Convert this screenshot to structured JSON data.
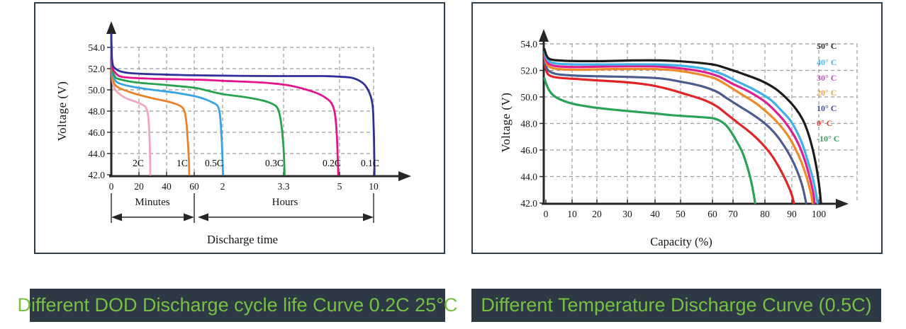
{
  "chart_data": [
    {
      "type": "line",
      "title": "Different DOD Discharge cycle life Curve 0.2C 25°C",
      "xlabel": "Discharge time",
      "ylabel": "Voltage (V)",
      "x_axis_units": {
        "first": "Minutes",
        "second": "Hours"
      },
      "x_ticks": [
        "0",
        "20",
        "40",
        "60",
        "2",
        "3.3",
        "5",
        "10"
      ],
      "x_tick_values_hours": [
        0,
        0.333,
        0.667,
        1,
        2,
        3.3,
        5,
        10
      ],
      "y_ticks": [
        "54.0",
        "52.0",
        "50.0",
        "48.0",
        "46.0",
        "44.0",
        "42.0"
      ],
      "y_tick_values": [
        54,
        52,
        50,
        48,
        46,
        44,
        42
      ],
      "ylim": [
        42,
        54
      ],
      "grid": "dashed",
      "series": [
        {
          "name": "2C",
          "color": "#f2a7bb",
          "points": [
            [
              0,
              53.8
            ],
            [
              0.008,
              51.5
            ],
            [
              0.02,
              50.6
            ],
            [
              0.05,
              50.0
            ],
            [
              0.1,
              49.6
            ],
            [
              0.18,
              49.2
            ],
            [
              0.27,
              48.95
            ],
            [
              0.35,
              48.7
            ],
            [
              0.41,
              48.4
            ],
            [
              0.44,
              47.8
            ],
            [
              0.455,
              46.5
            ],
            [
              0.465,
              44.5
            ],
            [
              0.47,
              42
            ]
          ]
        },
        {
          "name": "1C",
          "color": "#e8832c",
          "points": [
            [
              0,
              54.2
            ],
            [
              0.01,
              51.6
            ],
            [
              0.03,
              50.7
            ],
            [
              0.07,
              50.3
            ],
            [
              0.15,
              50.0
            ],
            [
              0.3,
              49.6
            ],
            [
              0.5,
              49.2
            ],
            [
              0.68,
              48.9
            ],
            [
              0.8,
              48.6
            ],
            [
              0.87,
              48.2
            ],
            [
              0.9,
              47.3
            ],
            [
              0.92,
              45.5
            ],
            [
              0.935,
              43.5
            ],
            [
              0.94,
              42
            ]
          ]
        },
        {
          "name": "0.5C",
          "color": "#3aa3e6",
          "points": [
            [
              0,
              54.5
            ],
            [
              0.01,
              52.0
            ],
            [
              0.04,
              51.0
            ],
            [
              0.1,
              50.6
            ],
            [
              0.25,
              50.3
            ],
            [
              0.5,
              50.0
            ],
            [
              0.8,
              49.7
            ],
            [
              1.1,
              49.35
            ],
            [
              1.4,
              49.1
            ],
            [
              1.65,
              48.8
            ],
            [
              1.82,
              48.5
            ],
            [
              1.9,
              47.8
            ],
            [
              1.95,
              46.2
            ],
            [
              1.99,
              44.0
            ],
            [
              2.01,
              42
            ]
          ]
        },
        {
          "name": "0.3C",
          "color": "#27a24f",
          "points": [
            [
              0,
              54.7
            ],
            [
              0.01,
              52.2
            ],
            [
              0.04,
              51.3
            ],
            [
              0.1,
              51.0
            ],
            [
              0.3,
              50.7
            ],
            [
              0.6,
              50.5
            ],
            [
              1.0,
              50.2
            ],
            [
              1.5,
              49.9
            ],
            [
              2.0,
              49.6
            ],
            [
              2.5,
              49.3
            ],
            [
              2.85,
              49.0
            ],
            [
              3.05,
              48.7
            ],
            [
              3.18,
              48.2
            ],
            [
              3.25,
              46.8
            ],
            [
              3.3,
              44.5
            ],
            [
              3.33,
              42
            ]
          ]
        },
        {
          "name": "0.2C",
          "color": "#e6148c",
          "points": [
            [
              0,
              55.0
            ],
            [
              0.01,
              52.4
            ],
            [
              0.05,
              51.6
            ],
            [
              0.15,
              51.2
            ],
            [
              0.5,
              51.05
            ],
            [
              1.2,
              50.95
            ],
            [
              2.0,
              50.85
            ],
            [
              2.8,
              50.7
            ],
            [
              3.4,
              50.45
            ],
            [
              3.9,
              50.1
            ],
            [
              4.3,
              49.7
            ],
            [
              4.6,
              49.2
            ],
            [
              4.78,
              48.6
            ],
            [
              4.87,
              47.5
            ],
            [
              4.92,
              45.5
            ],
            [
              4.95,
              43.0
            ],
            [
              4.96,
              42
            ]
          ]
        },
        {
          "name": "0.1C",
          "color": "#30309a",
          "points": [
            [
              0,
              55.3
            ],
            [
              0.01,
              52.8
            ],
            [
              0.05,
              52.0
            ],
            [
              0.2,
              51.6
            ],
            [
              0.6,
              51.45
            ],
            [
              1.5,
              51.35
            ],
            [
              3.0,
              51.3
            ],
            [
              4.5,
              51.3
            ],
            [
              6.0,
              51.2
            ],
            [
              7.0,
              51.1
            ],
            [
              7.8,
              50.9
            ],
            [
              8.5,
              50.6
            ],
            [
              9.0,
              50.2
            ],
            [
              9.4,
              49.7
            ],
            [
              9.7,
              49.1
            ],
            [
              9.88,
              48.4
            ],
            [
              9.97,
              47.3
            ],
            [
              10.05,
              45.5
            ],
            [
              10.1,
              43.5
            ],
            [
              10.12,
              42
            ]
          ]
        }
      ]
    },
    {
      "type": "line",
      "title": "Different Temperature Discharge Curve (0.5C)",
      "xlabel": "Capacity (%)",
      "ylabel": "Voltage (V)",
      "x_ticks": [
        "0",
        "10",
        "20",
        "30",
        "40",
        "50",
        "60",
        "70",
        "80",
        "90",
        "100"
      ],
      "x_tick_values": [
        0,
        10,
        20,
        30,
        40,
        50,
        60,
        70,
        80,
        90,
        100
      ],
      "y_ticks": [
        "54.0",
        "52.0",
        "50.0",
        "48.0",
        "46.0",
        "44.0",
        "42.0"
      ],
      "y_tick_values": [
        54,
        52,
        50,
        48,
        46,
        44,
        42
      ],
      "xlim": [
        0,
        100
      ],
      "ylim": [
        42,
        54
      ],
      "grid": "dashed",
      "legend_position": "right-top",
      "series": [
        {
          "label": "50° C",
          "color": "#1c1c1c",
          "legend_color": "#2b2b33",
          "points": [
            [
              0,
              53.6
            ],
            [
              0.8,
              53.1
            ],
            [
              2,
              52.85
            ],
            [
              5,
              52.75
            ],
            [
              12,
              52.7
            ],
            [
              22,
              52.7
            ],
            [
              32,
              52.75
            ],
            [
              42,
              52.75
            ],
            [
              52,
              52.65
            ],
            [
              60,
              52.45
            ],
            [
              67,
              52.15
            ],
            [
              73,
              51.75
            ],
            [
              79,
              51.2
            ],
            [
              84,
              50.6
            ],
            [
              88,
              49.9
            ],
            [
              91.5,
              49.1
            ],
            [
              94,
              48.3
            ],
            [
              96,
              47.3
            ],
            [
              97.8,
              46.0
            ],
            [
              99.2,
              44.6
            ],
            [
              100.2,
              43.2
            ],
            [
              100.8,
              42
            ]
          ]
        },
        {
          "label": "40° C",
          "color": "#3fb1e8",
          "legend_color": "#4db8e8",
          "points": [
            [
              0,
              53.4
            ],
            [
              0.8,
              52.9
            ],
            [
              2,
              52.65
            ],
            [
              5,
              52.5
            ],
            [
              12,
              52.45
            ],
            [
              25,
              52.45
            ],
            [
              40,
              52.45
            ],
            [
              50,
              52.35
            ],
            [
              58,
              52.1
            ],
            [
              65,
              51.7
            ],
            [
              71,
              51.2
            ],
            [
              77,
              50.5
            ],
            [
              82,
              49.8
            ],
            [
              86,
              49.0
            ],
            [
              89.5,
              48.2
            ],
            [
              92.3,
              47.2
            ],
            [
              94.5,
              46.1
            ],
            [
              96.3,
              44.9
            ],
            [
              97.6,
              44.0
            ],
            [
              98.7,
              43.0
            ],
            [
              99.5,
              42
            ]
          ]
        },
        {
          "label": "30° C",
          "color": "#de1f8e",
          "legend_color": "#b558b5",
          "points": [
            [
              0,
              53.2
            ],
            [
              0.8,
              52.7
            ],
            [
              2,
              52.45
            ],
            [
              5,
              52.3
            ],
            [
              12,
              52.25
            ],
            [
              25,
              52.3
            ],
            [
              40,
              52.3
            ],
            [
              50,
              52.15
            ],
            [
              57,
              51.9
            ],
            [
              63,
              51.55
            ],
            [
              69,
              51.05
            ],
            [
              75,
              50.4
            ],
            [
              80,
              49.65
            ],
            [
              84,
              48.9
            ],
            [
              87.5,
              48.1
            ],
            [
              90.5,
              47.2
            ],
            [
              93,
              46.2
            ],
            [
              95,
              45.1
            ],
            [
              96.8,
              43.8
            ],
            [
              98,
              42.7
            ],
            [
              98.4,
              42
            ]
          ]
        },
        {
          "label": "20° C",
          "color": "#ef8a28",
          "legend_color": "#f2a050",
          "points": [
            [
              0,
              53.1
            ],
            [
              0.8,
              52.5
            ],
            [
              2,
              52.25
            ],
            [
              5,
              52.1
            ],
            [
              12,
              52.05
            ],
            [
              25,
              52.1
            ],
            [
              40,
              52.1
            ],
            [
              48,
              52.0
            ],
            [
              55,
              51.75
            ],
            [
              61,
              51.4
            ],
            [
              67,
              50.9
            ],
            [
              72,
              50.3
            ],
            [
              77,
              49.55
            ],
            [
              81,
              48.8
            ],
            [
              85,
              48.0
            ],
            [
              88.5,
              47.1
            ],
            [
              91.3,
              46.1
            ],
            [
              93.7,
              45.0
            ],
            [
              95.7,
              43.8
            ],
            [
              97.2,
              42.6
            ],
            [
              97.7,
              42
            ]
          ]
        },
        {
          "label": "10° C",
          "color": "#4d5c8e",
          "legend_color": "#3c4da0",
          "points": [
            [
              0,
              52.9
            ],
            [
              0.8,
              52.2
            ],
            [
              2,
              51.9
            ],
            [
              5,
              51.7
            ],
            [
              12,
              51.6
            ],
            [
              22,
              51.55
            ],
            [
              32,
              51.5
            ],
            [
              42,
              51.4
            ],
            [
              50,
              51.15
            ],
            [
              56,
              50.85
            ],
            [
              62,
              50.4
            ],
            [
              67,
              49.9
            ],
            [
              72,
              49.3
            ],
            [
              76,
              48.7
            ],
            [
              80,
              48.0
            ],
            [
              83.5,
              47.3
            ],
            [
              86.5,
              46.5
            ],
            [
              89.5,
              45.5
            ],
            [
              92,
              44.4
            ],
            [
              94,
              43.2
            ],
            [
              95.3,
              42
            ]
          ]
        },
        {
          "label": "0° C",
          "color": "#e42326",
          "legend_color": "#e43b3b",
          "points": [
            [
              0,
              52.6
            ],
            [
              0.8,
              51.9
            ],
            [
              2,
              51.6
            ],
            [
              5,
              51.45
            ],
            [
              12,
              51.35
            ],
            [
              20,
              51.25
            ],
            [
              30,
              51.1
            ],
            [
              38,
              50.9
            ],
            [
              45,
              50.6
            ],
            [
              51,
              50.25
            ],
            [
              57,
              49.8
            ],
            [
              62,
              49.3
            ],
            [
              67,
              48.7
            ],
            [
              71.5,
              48.05
            ],
            [
              75.5,
              47.3
            ],
            [
              79,
              46.5
            ],
            [
              82.5,
              45.6
            ],
            [
              85.5,
              44.6
            ],
            [
              88,
              43.6
            ],
            [
              90,
              42.6
            ],
            [
              90.7,
              42
            ]
          ]
        },
        {
          "label": "-10° C",
          "color": "#2ba356",
          "legend_color": "#3aa060",
          "points": [
            [
              0,
              51.4
            ],
            [
              0.8,
              50.9
            ],
            [
              2,
              50.4
            ],
            [
              4,
              50.0
            ],
            [
              7,
              49.7
            ],
            [
              10,
              49.5
            ],
            [
              14,
              49.35
            ],
            [
              19,
              49.2
            ],
            [
              25,
              49.05
            ],
            [
              32,
              48.9
            ],
            [
              40,
              48.75
            ],
            [
              48,
              48.6
            ],
            [
              55,
              48.5
            ],
            [
              60,
              48.4
            ],
            [
              63,
              48.25
            ],
            [
              66,
              47.95
            ],
            [
              68.5,
              47.5
            ],
            [
              70.8,
              46.8
            ],
            [
              72.8,
              45.9
            ],
            [
              74.4,
              44.8
            ],
            [
              75.7,
              43.6
            ],
            [
              76.6,
              42.5
            ],
            [
              76.9,
              42
            ]
          ]
        }
      ]
    }
  ]
}
